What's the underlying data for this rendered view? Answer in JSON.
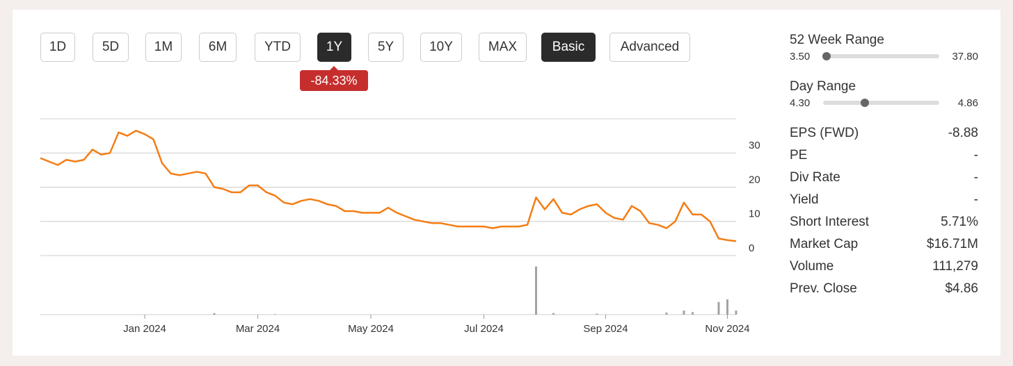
{
  "buttons": [
    "1D",
    "5D",
    "1M",
    "6M",
    "YTD",
    "1Y",
    "5Y",
    "10Y",
    "MAX",
    "Basic",
    "Advanced"
  ],
  "active_buttons": [
    5,
    9
  ],
  "change": "-84.33%",
  "chart_data": [
    {
      "type": "line",
      "color": "#f57c13",
      "ylim": [
        0,
        40
      ],
      "yticks": [
        0,
        10,
        20,
        30
      ],
      "grid": true,
      "categories": [
        null,
        null,
        null,
        null,
        null,
        null,
        null,
        null,
        null,
        null,
        null,
        null,
        "Jan 2024",
        null,
        null,
        null,
        null,
        null,
        null,
        null,
        null,
        null,
        null,
        null,
        null,
        "Mar 2024",
        null,
        null,
        null,
        null,
        null,
        null,
        null,
        null,
        null,
        null,
        null,
        null,
        "May 2024",
        null,
        null,
        null,
        null,
        null,
        null,
        null,
        null,
        null,
        null,
        null,
        null,
        "Jul 2024",
        null,
        null,
        null,
        null,
        null,
        null,
        null,
        null,
        null,
        null,
        null,
        null,
        null,
        "Sep 2024",
        null,
        null,
        null,
        null,
        null,
        null,
        null,
        null,
        null,
        null,
        null,
        null,
        null,
        "Nov 2024",
        null
      ],
      "values": [
        28.5,
        27.5,
        26.5,
        28,
        27.5,
        28,
        31,
        29.5,
        30,
        36,
        35,
        36.5,
        35.5,
        34,
        27,
        24,
        23.5,
        24,
        24.5,
        24,
        20,
        19.5,
        18.5,
        18.5,
        20.5,
        20.5,
        18.5,
        17.5,
        15.5,
        15,
        16,
        16.5,
        16,
        15,
        14.5,
        13,
        13,
        12.5,
        12.5,
        12.5,
        14,
        12.5,
        11.5,
        10.5,
        10,
        9.5,
        9.5,
        9,
        8.5,
        8.5,
        8.5,
        8.5,
        8,
        8.5,
        8.5,
        8.5,
        9,
        17,
        13.5,
        16.5,
        12.5,
        12,
        13.5,
        14.5,
        15,
        12.5,
        11,
        10.5,
        14.5,
        13,
        9.5,
        9,
        8,
        10,
        15.5,
        12,
        12,
        10,
        5,
        4.5,
        4.2
      ]
    },
    {
      "type": "bar",
      "color": "#a3a3a3",
      "ylim": [
        0,
        100
      ],
      "values": [
        0,
        0,
        0,
        0,
        0,
        0,
        0,
        0,
        0,
        0,
        0,
        0,
        0,
        0,
        0,
        0,
        0,
        0,
        0,
        0,
        3,
        0,
        0,
        0,
        0,
        0,
        0,
        1,
        0,
        0,
        0,
        0,
        0,
        0,
        0,
        0,
        0,
        0,
        0,
        0,
        0,
        0,
        0,
        0,
        0,
        0,
        0,
        0,
        0,
        0,
        0,
        0,
        0,
        0,
        0,
        0,
        0,
        95,
        0,
        3,
        0,
        0,
        0,
        0,
        2,
        0,
        0,
        0,
        0,
        0,
        0,
        0,
        4,
        0,
        8,
        5,
        0,
        0,
        25,
        30,
        8
      ]
    }
  ],
  "ranges": [
    {
      "label": "52 Week Range",
      "low": {
        "value": 3.5,
        "label": "3.50"
      },
      "high": {
        "value": 37.8,
        "label": "37.80"
      },
      "marker": 4.5
    },
    {
      "label": "Day Range",
      "low": {
        "value": 4.3,
        "label": "4.30"
      },
      "high": {
        "value": 4.86,
        "label": "4.86"
      },
      "marker": 4.5
    }
  ],
  "stats": [
    [
      "EPS (FWD)",
      "-8.88"
    ],
    [
      "PE",
      "-"
    ],
    [
      "Div Rate",
      "-"
    ],
    [
      "Yield",
      "-"
    ],
    [
      "Short Interest",
      "5.71%"
    ],
    [
      "Market Cap",
      "$16.71M"
    ],
    [
      "Volume",
      "111,279"
    ],
    [
      "Prev. Close",
      "$4.86"
    ]
  ]
}
